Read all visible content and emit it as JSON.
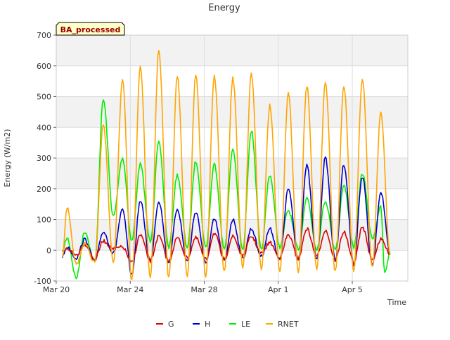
{
  "chart_data": {
    "type": "line",
    "title": "Energy",
    "badge": "BA_processed",
    "xlabel": "Time",
    "ylabel": "Energy (W/m2)",
    "xlim": [
      "2023-03-20",
      "2023-04-08"
    ],
    "ylim": [
      -100,
      700
    ],
    "yticks": [
      -100,
      0,
      100,
      200,
      300,
      400,
      500,
      600,
      700
    ],
    "xticks": [
      {
        "date": "2023-03-20",
        "label": "Mar 20"
      },
      {
        "date": "2023-03-24",
        "label": "Mar 24"
      },
      {
        "date": "2023-03-28",
        "label": "Mar 28"
      },
      {
        "date": "2023-04-01",
        "label": "Apr 1"
      },
      {
        "date": "2023-04-05",
        "label": "Apr 5"
      }
    ],
    "grid": true,
    "legend_position": "bottom-center",
    "series": [
      {
        "name": "G",
        "color": "#dd0000",
        "points": [
          [
            "2023-03-20T08:00",
            -10
          ],
          [
            "2023-03-20T14:00",
            5
          ],
          [
            "2023-03-21T02:00",
            -15
          ],
          [
            "2023-03-21T13:00",
            20
          ],
          [
            "2023-03-22T02:00",
            -30
          ],
          [
            "2023-03-22T13:00",
            30
          ],
          [
            "2023-03-23T02:00",
            5
          ],
          [
            "2023-03-23T14:00",
            10
          ],
          [
            "2023-03-24T02:00",
            -40
          ],
          [
            "2023-03-24T13:00",
            50
          ],
          [
            "2023-03-25T02:00",
            -35
          ],
          [
            "2023-03-25T13:00",
            45
          ],
          [
            "2023-03-26T02:00",
            -35
          ],
          [
            "2023-03-26T13:00",
            40
          ],
          [
            "2023-03-27T02:00",
            -25
          ],
          [
            "2023-03-27T13:00",
            40
          ],
          [
            "2023-03-28T02:00",
            -30
          ],
          [
            "2023-03-28T13:00",
            55
          ],
          [
            "2023-03-29T02:00",
            -30
          ],
          [
            "2023-03-29T13:00",
            45
          ],
          [
            "2023-03-30T02:00",
            -20
          ],
          [
            "2023-03-30T13:00",
            45
          ],
          [
            "2023-03-31T02:00",
            -10
          ],
          [
            "2023-03-31T13:00",
            25
          ],
          [
            "2023-04-01T02:00",
            -25
          ],
          [
            "2023-04-01T13:00",
            50
          ],
          [
            "2023-04-02T02:00",
            -25
          ],
          [
            "2023-04-02T13:00",
            70
          ],
          [
            "2023-04-03T02:00",
            -20
          ],
          [
            "2023-04-03T13:00",
            65
          ],
          [
            "2023-04-04T02:00",
            -30
          ],
          [
            "2023-04-04T13:00",
            60
          ],
          [
            "2023-04-05T02:00",
            -40
          ],
          [
            "2023-04-05T13:00",
            75
          ],
          [
            "2023-04-06T02:00",
            -30
          ],
          [
            "2023-04-06T13:00",
            35
          ],
          [
            "2023-04-07T01:00",
            -10
          ]
        ]
      },
      {
        "name": "H",
        "color": "#0000cc",
        "points": [
          [
            "2023-03-20T08:00",
            -20
          ],
          [
            "2023-03-20T14:00",
            10
          ],
          [
            "2023-03-21T02:00",
            -25
          ],
          [
            "2023-03-21T13:00",
            35
          ],
          [
            "2023-03-22T02:00",
            -35
          ],
          [
            "2023-03-22T13:00",
            60
          ],
          [
            "2023-03-23T02:00",
            -10
          ],
          [
            "2023-03-23T14:00",
            130
          ],
          [
            "2023-03-24T02:00",
            -80
          ],
          [
            "2023-03-24T13:00",
            160
          ],
          [
            "2023-03-25T02:00",
            -35
          ],
          [
            "2023-03-25T13:00",
            160
          ],
          [
            "2023-03-26T02:00",
            -40
          ],
          [
            "2023-03-26T13:00",
            135
          ],
          [
            "2023-03-27T02:00",
            -35
          ],
          [
            "2023-03-27T13:00",
            125
          ],
          [
            "2023-03-28T02:00",
            -40
          ],
          [
            "2023-03-28T13:00",
            100
          ],
          [
            "2023-03-29T02:00",
            -35
          ],
          [
            "2023-03-29T13:00",
            100
          ],
          [
            "2023-03-30T02:00",
            -25
          ],
          [
            "2023-03-30T13:00",
            70
          ],
          [
            "2023-03-31T02:00",
            -20
          ],
          [
            "2023-03-31T13:00",
            70
          ],
          [
            "2023-04-01T02:00",
            -30
          ],
          [
            "2023-04-01T13:00",
            200
          ],
          [
            "2023-04-02T02:00",
            -30
          ],
          [
            "2023-04-02T13:00",
            275
          ],
          [
            "2023-04-03T02:00",
            -30
          ],
          [
            "2023-04-03T13:00",
            300
          ],
          [
            "2023-04-04T02:00",
            -35
          ],
          [
            "2023-04-04T13:00",
            280
          ],
          [
            "2023-04-05T02:00",
            -45
          ],
          [
            "2023-04-05T13:00",
            240
          ],
          [
            "2023-04-06T02:00",
            -50
          ],
          [
            "2023-04-06T13:00",
            190
          ],
          [
            "2023-04-07T01:00",
            -10
          ]
        ]
      },
      {
        "name": "LE",
        "color": "#00ee00",
        "points": [
          [
            "2023-03-20T08:00",
            -5
          ],
          [
            "2023-03-20T14:00",
            40
          ],
          [
            "2023-03-21T02:00",
            -90
          ],
          [
            "2023-03-21T13:00",
            60
          ],
          [
            "2023-03-22T02:00",
            -40
          ],
          [
            "2023-03-22T13:00",
            490
          ],
          [
            "2023-03-23T02:00",
            110
          ],
          [
            "2023-03-23T14:00",
            300
          ],
          [
            "2023-03-24T02:00",
            30
          ],
          [
            "2023-03-24T13:00",
            280
          ],
          [
            "2023-03-25T02:00",
            30
          ],
          [
            "2023-03-25T13:00",
            350
          ],
          [
            "2023-03-26T02:00",
            10
          ],
          [
            "2023-03-26T13:00",
            245
          ],
          [
            "2023-03-27T02:00",
            10
          ],
          [
            "2023-03-27T13:00",
            290
          ],
          [
            "2023-03-28T02:00",
            10
          ],
          [
            "2023-03-28T13:00",
            280
          ],
          [
            "2023-03-29T02:00",
            5
          ],
          [
            "2023-03-29T13:00",
            330
          ],
          [
            "2023-03-30T02:00",
            0
          ],
          [
            "2023-03-30T13:00",
            390
          ],
          [
            "2023-03-31T02:00",
            0
          ],
          [
            "2023-03-31T13:00",
            245
          ],
          [
            "2023-04-01T02:00",
            10
          ],
          [
            "2023-04-01T13:00",
            130
          ],
          [
            "2023-04-02T02:00",
            5
          ],
          [
            "2023-04-02T13:00",
            170
          ],
          [
            "2023-04-03T02:00",
            5
          ],
          [
            "2023-04-03T13:00",
            160
          ],
          [
            "2023-04-04T02:00",
            5
          ],
          [
            "2023-04-04T13:00",
            210
          ],
          [
            "2023-04-05T02:00",
            10
          ],
          [
            "2023-04-05T13:00",
            250
          ],
          [
            "2023-04-06T02:00",
            40
          ],
          [
            "2023-04-06T13:00",
            140
          ],
          [
            "2023-04-06T18:00",
            -75
          ],
          [
            "2023-04-07T01:00",
            -5
          ]
        ]
      },
      {
        "name": "RNET",
        "color": "#ffa500",
        "points": [
          [
            "2023-03-20T08:00",
            -20
          ],
          [
            "2023-03-20T14:00",
            140
          ],
          [
            "2023-03-21T02:00",
            -45
          ],
          [
            "2023-03-21T13:00",
            20
          ],
          [
            "2023-03-22T02:00",
            -40
          ],
          [
            "2023-03-22T13:00",
            410
          ],
          [
            "2023-03-23T02:00",
            -40
          ],
          [
            "2023-03-23T14:00",
            555
          ],
          [
            "2023-03-24T02:00",
            -100
          ],
          [
            "2023-03-24T13:00",
            595
          ],
          [
            "2023-03-25T02:00",
            -90
          ],
          [
            "2023-03-25T13:00",
            650
          ],
          [
            "2023-03-26T02:00",
            -90
          ],
          [
            "2023-03-26T13:00",
            565
          ],
          [
            "2023-03-27T02:00",
            -85
          ],
          [
            "2023-03-27T13:00",
            570
          ],
          [
            "2023-03-28T02:00",
            -85
          ],
          [
            "2023-03-28T13:00",
            565
          ],
          [
            "2023-03-29T02:00",
            -70
          ],
          [
            "2023-03-29T13:00",
            560
          ],
          [
            "2023-03-30T02:00",
            -55
          ],
          [
            "2023-03-30T13:00",
            575
          ],
          [
            "2023-03-31T02:00",
            -60
          ],
          [
            "2023-03-31T13:00",
            470
          ],
          [
            "2023-04-01T02:00",
            -70
          ],
          [
            "2023-04-01T13:00",
            510
          ],
          [
            "2023-04-02T02:00",
            -70
          ],
          [
            "2023-04-02T13:00",
            535
          ],
          [
            "2023-04-03T02:00",
            -65
          ],
          [
            "2023-04-03T13:00",
            545
          ],
          [
            "2023-04-04T02:00",
            -70
          ],
          [
            "2023-04-04T13:00",
            535
          ],
          [
            "2023-04-05T02:00",
            -65
          ],
          [
            "2023-04-05T13:00",
            560
          ],
          [
            "2023-04-06T02:00",
            -55
          ],
          [
            "2023-04-06T13:00",
            445
          ],
          [
            "2023-04-07T01:00",
            -15
          ]
        ]
      }
    ]
  }
}
